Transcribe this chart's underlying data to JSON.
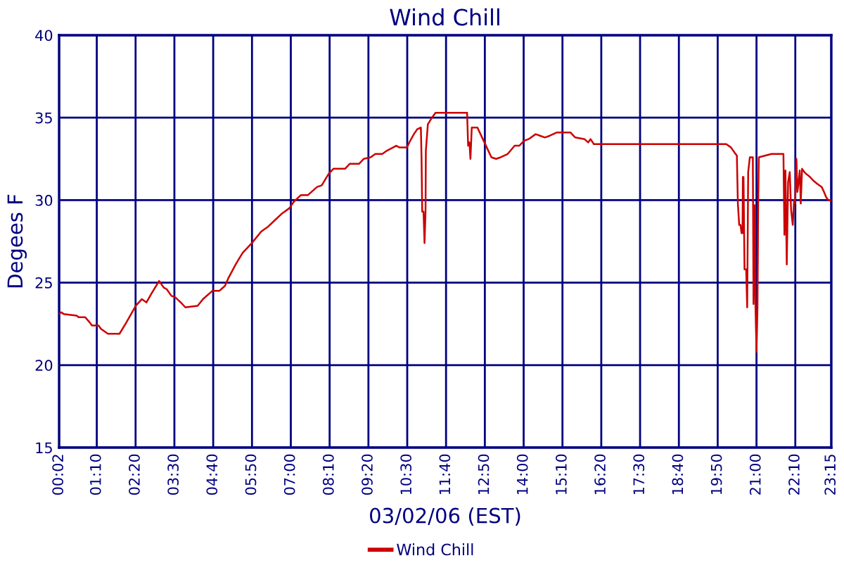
{
  "chart_data": {
    "type": "line",
    "title": "Wind Chill",
    "xlabel": "03/02/06 (EST)",
    "ylabel": "Degees F",
    "x": [
      0.0333,
      0.1,
      0.17,
      0.56,
      0.62,
      0.82,
      0.95,
      1.02,
      1.22,
      1.29,
      1.5,
      1.85,
      2.06,
      2.34,
      2.52,
      2.66,
      2.83,
      3.04,
      3.18,
      3.27,
      3.41,
      3.53,
      3.69,
      3.83,
      4.2,
      4.36,
      4.64,
      4.85,
      5.02,
      5.13,
      5.34,
      5.55,
      5.83,
      6.11,
      6.32,
      6.53,
      6.74,
      6.95,
      7.09,
      7.3,
      7.51,
      7.79,
      7.93,
      8.14,
      8.28,
      8.63,
      8.77,
      9.05,
      9.19,
      9.4,
      9.54,
      9.75,
      9.89,
      10.17,
      10.26,
      10.49,
      10.59,
      10.7,
      10.8,
      10.91,
      10.93,
      10.95,
      10.99,
      11.02,
      11.05,
      11.06,
      11.12,
      11.21,
      11.35,
      12.3,
      12.33,
      12.37,
      12.4,
      12.44,
      12.61,
      12.82,
      13.03,
      13.17,
      13.31,
      13.52,
      13.73,
      13.87,
      14.01,
      14.15,
      14.36,
      14.5,
      14.64,
      14.78,
      14.99,
      15.41,
      15.55,
      15.83,
      15.94,
      16.01,
      16.11,
      16.53,
      16.8,
      17.36,
      17.5,
      18.2,
      18.76,
      19.46,
      20.09,
      20.23,
      20.37,
      20.41,
      20.44,
      20.48,
      20.52,
      20.55,
      20.58,
      20.59,
      20.61,
      20.64,
      20.69,
      20.72,
      20.75,
      20.8,
      20.89,
      20.91,
      20.94,
      20.97,
      21.0,
      21.03,
      21.05,
      21.07,
      21.45,
      21.81,
      21.84,
      21.87,
      21.91,
      21.95,
      22.0,
      22.04,
      22.09,
      22.13,
      22.16,
      22.2,
      22.23,
      22.26,
      22.3,
      22.33,
      22.37,
      22.44,
      22.49,
      22.61,
      22.7,
      22.82,
      22.96,
      23.03,
      23.09,
      23.16,
      23.25
    ],
    "series": [
      {
        "name": "Wind Chill",
        "color": "#cc0000",
        "values": [
          23.1,
          23.2,
          23.1,
          23.0,
          22.9,
          22.9,
          22.6,
          22.4,
          22.4,
          22.2,
          21.9,
          21.9,
          22.6,
          23.6,
          24.0,
          23.8,
          24.4,
          25.1,
          24.7,
          24.6,
          24.2,
          24.1,
          23.8,
          23.5,
          23.6,
          24.0,
          24.5,
          24.5,
          24.8,
          25.3,
          26.1,
          26.8,
          27.4,
          28.1,
          28.4,
          28.8,
          29.2,
          29.5,
          29.9,
          30.3,
          30.3,
          30.8,
          30.9,
          31.6,
          31.9,
          31.9,
          32.2,
          32.2,
          32.5,
          32.6,
          32.8,
          32.8,
          33.0,
          33.3,
          33.2,
          33.2,
          33.6,
          34.0,
          34.3,
          34.4,
          32.6,
          29.3,
          29.3,
          27.4,
          29.3,
          33.0,
          34.6,
          34.9,
          35.3,
          35.3,
          33.3,
          33.5,
          32.5,
          34.4,
          34.4,
          33.5,
          32.6,
          32.5,
          32.6,
          32.8,
          33.3,
          33.3,
          33.6,
          33.7,
          34.0,
          33.9,
          33.8,
          33.9,
          34.1,
          34.1,
          33.8,
          33.7,
          33.5,
          33.7,
          33.4,
          33.4,
          33.4,
          33.4,
          33.4,
          33.4,
          33.4,
          33.4,
          33.4,
          33.2,
          32.8,
          32.7,
          29.8,
          28.5,
          28.5,
          28.0,
          28.0,
          31.4,
          31.4,
          25.8,
          25.8,
          23.5,
          31.7,
          32.6,
          32.6,
          23.7,
          29.7,
          23.5,
          20.8,
          23.5,
          29.7,
          32.6,
          32.8,
          32.8,
          27.9,
          31.8,
          26.1,
          31.1,
          31.7,
          29.4,
          28.5,
          30.0,
          29.8,
          32.5,
          30.5,
          31.0,
          31.8,
          29.8,
          31.9,
          31.7,
          31.6,
          31.4,
          31.2,
          31.0,
          30.8,
          30.5,
          30.2,
          30.0,
          30.0
        ]
      }
    ],
    "xlim": [
      0.0333,
      23.25
    ],
    "xticks": [
      {
        "value": 0.0333,
        "label": "00:02"
      },
      {
        "value": 1.1667,
        "label": "01:10"
      },
      {
        "value": 2.3333,
        "label": "02:20"
      },
      {
        "value": 3.5,
        "label": "03:30"
      },
      {
        "value": 4.6667,
        "label": "04:40"
      },
      {
        "value": 5.8333,
        "label": "05:50"
      },
      {
        "value": 7,
        "label": "07:00"
      },
      {
        "value": 8.1667,
        "label": "08:10"
      },
      {
        "value": 9.3333,
        "label": "09:20"
      },
      {
        "value": 10.5,
        "label": "10:30"
      },
      {
        "value": 11.6667,
        "label": "11:40"
      },
      {
        "value": 12.8333,
        "label": "12:50"
      },
      {
        "value": 14,
        "label": "14:00"
      },
      {
        "value": 15.1667,
        "label": "15:10"
      },
      {
        "value": 16.3333,
        "label": "16:20"
      },
      {
        "value": 17.5,
        "label": "17:30"
      },
      {
        "value": 18.6667,
        "label": "18:40"
      },
      {
        "value": 19.8333,
        "label": "19:50"
      },
      {
        "value": 21,
        "label": "21:00"
      },
      {
        "value": 22.1667,
        "label": "22:10"
      },
      {
        "value": 23.25,
        "label": "23:15"
      }
    ],
    "ylim": [
      15,
      40
    ],
    "yticks": [
      15,
      20,
      25,
      30,
      35,
      40
    ],
    "grid": true,
    "legend": "bottom",
    "marker": "none",
    "line_style": "solid"
  }
}
